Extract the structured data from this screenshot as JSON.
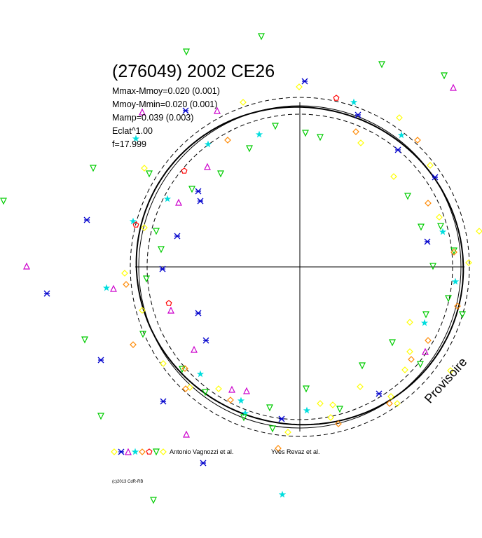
{
  "title": "(276049) 2002 CE26",
  "stats": {
    "line1": "Mmax-Mmoy=0.020 (0.001)",
    "line2": "Mmoy-Mmin=0.020 (0.001)",
    "line3": "Mamp=0.039 (0.003)",
    "line4": "Eclat^1.00",
    "line5": "f=17.999"
  },
  "watermark": "Provisoire",
  "copyright": "(c)2013 CdR-RB",
  "legend": {
    "observer1": "Antonio Vagnozzi et al.",
    "observer2": "Yves Revaz et al."
  },
  "colors": {
    "yellow": "#ffff00",
    "blue": "#0000cc",
    "magenta": "#cc00cc",
    "cyan": "#00dddd",
    "orange": "#ff8800",
    "red": "#ff0000",
    "green": "#00cc00"
  },
  "chart_data": {
    "type": "scatter",
    "plot_style": "polar light curve (magnitude vs rotational phase)",
    "series": [
      {
        "name": "Antonio Vagnozzi et al.",
        "markers": [
          "yellow-diamond",
          "blue-x",
          "magenta-triangle",
          "cyan-star",
          "orange-diamond",
          "red-pentagon",
          "green-triangle-down"
        ]
      },
      {
        "name": "Yves Revaz et al.",
        "markers": [
          "orange-diamond"
        ]
      }
    ],
    "guides": [
      "fitted curve",
      "mean circle",
      "dashed envelope (inner)",
      "dashed envelope (outer)",
      "horizontal axis",
      "vertical axis"
    ]
  }
}
